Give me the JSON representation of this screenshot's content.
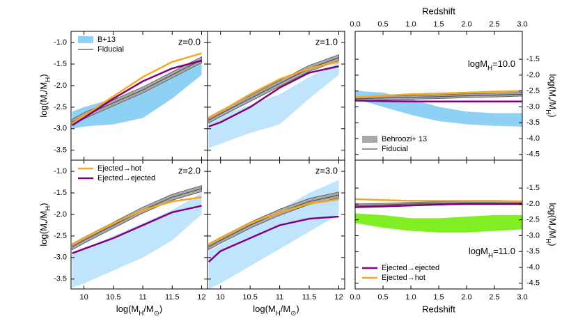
{
  "chart_data": [
    {
      "type": "line",
      "label": "z=0.0",
      "legend": "upper left",
      "xlim": [
        9.78,
        12.1
      ],
      "ylim": [
        -3.73,
        -0.74
      ],
      "xticks": [
        10,
        10.5,
        11,
        11.5,
        12
      ],
      "yticks": [
        {
          "value": -1.0,
          "label": "-1.0"
        },
        -1.5,
        {
          "value": -2.0,
          "label": "-2.0"
        },
        -2.5,
        {
          "value": -3.0,
          "label": "-3.0"
        },
        -3.5
      ],
      "ylabel": [
        "log(M",
        "*",
        "/M",
        "H",
        ")"
      ],
      "x": [
        9.8,
        10,
        10.5,
        11,
        11.5,
        12
      ],
      "series": [
        {
          "name": "B+13",
          "color": "#8fd0f5",
          "lower": [
            -3.0,
            -2.95,
            -2.9,
            -2.75,
            -2.3,
            -1.75
          ],
          "upper": [
            -2.6,
            -2.5,
            -2.3,
            -2.15,
            -1.75,
            -1.35
          ]
        },
        {
          "color": "#a8a8a8",
          "lower": [
            -2.92,
            -2.77,
            -2.47,
            -2.17,
            -1.82,
            -1.47
          ],
          "upper": [
            -2.78,
            -2.63,
            -2.33,
            -2.03,
            -1.68,
            -1.33
          ]
        },
        {
          "name": "Fiducial",
          "color": "#555555",
          "values": [
            -2.85,
            -2.7,
            -2.4,
            -2.1,
            -1.75,
            -1.4
          ]
        },
        {
          "color": "#f5a623",
          "values": [
            -2.88,
            -2.7,
            -2.25,
            -1.8,
            -1.45,
            -1.25
          ]
        },
        {
          "color": "#800080",
          "values": [
            -2.92,
            -2.75,
            -2.3,
            -1.9,
            -1.6,
            -1.42
          ]
        }
      ]
    },
    {
      "type": "line",
      "label": "z=1.0",
      "xlim": [
        9.78,
        12.1
      ],
      "ylim": [
        -3.73,
        -0.74
      ],
      "xticks": [
        10,
        10.5,
        11,
        11.5,
        12
      ],
      "yticks": [
        {
          "value": -1.0,
          "label": "-1.0"
        },
        -1.5,
        {
          "value": -2.0,
          "label": "-2.0"
        },
        -2.5,
        {
          "value": -3.0,
          "label": "-3.0"
        },
        -3.5
      ],
      "x": [
        9.8,
        10,
        10.5,
        11,
        11.5,
        12
      ],
      "series": [
        {
          "color": "#bfe4fb",
          "lower": [
            -3.45,
            -3.35,
            -3.1,
            -2.9,
            -2.3,
            -1.75
          ],
          "upper": [
            -2.8,
            -2.7,
            -2.45,
            -2.2,
            -1.8,
            -1.45
          ]
        },
        {
          "color": "#a8a8a8",
          "lower": [
            -2.87,
            -2.72,
            -2.37,
            -2.02,
            -1.67,
            -1.42
          ],
          "upper": [
            -2.73,
            -2.58,
            -2.23,
            -1.88,
            -1.53,
            -1.28
          ]
        },
        {
          "color": "#555555",
          "values": [
            -2.8,
            -2.65,
            -2.3,
            -1.95,
            -1.6,
            -1.35
          ]
        },
        {
          "color": "#f5a623",
          "values": [
            -2.75,
            -2.6,
            -2.2,
            -1.85,
            -1.6,
            -1.45
          ]
        },
        {
          "color": "#800080",
          "values": [
            -2.95,
            -2.85,
            -2.5,
            -2.05,
            -1.7,
            -1.55
          ]
        }
      ]
    },
    {
      "type": "line",
      "label": "z=2.0",
      "legend": "upper left",
      "xlim": [
        9.78,
        12.1
      ],
      "ylim": [
        -3.73,
        -0.74
      ],
      "xticks": [
        10,
        10.5,
        11,
        11.5,
        12
      ],
      "yticks": [
        {
          "value": -1.0,
          "label": "-1.0"
        },
        -1.5,
        {
          "value": -2.0,
          "label": "-2.0"
        },
        -2.5,
        {
          "value": -3.0,
          "label": "-3.0"
        },
        -3.5
      ],
      "xlabel": [
        "log(M",
        "H",
        "/M",
        "⊙",
        ")"
      ],
      "ylabel": [
        "log(M",
        "*",
        "/M",
        "H",
        ")"
      ],
      "x": [
        9.8,
        10,
        10.5,
        11,
        11.5,
        12
      ],
      "series": [
        {
          "color": "#bfe4fb",
          "lower": [
            -3.7,
            -3.6,
            -3.3,
            -3.0,
            -2.6,
            -2.0
          ],
          "upper": [
            -2.9,
            -2.8,
            -2.5,
            -2.2,
            -1.9,
            -1.5
          ]
        },
        {
          "color": "#a8a8a8",
          "lower": [
            -2.82,
            -2.67,
            -2.32,
            -1.97,
            -1.67,
            -1.47
          ],
          "upper": [
            -2.68,
            -2.53,
            -2.18,
            -1.83,
            -1.53,
            -1.33
          ]
        },
        {
          "color": "#555555",
          "values": [
            -2.75,
            -2.6,
            -2.25,
            -1.9,
            -1.6,
            -1.4
          ]
        },
        {
          "name": "Ejected→hot",
          "color": "#f5a623",
          "values": [
            -2.7,
            -2.55,
            -2.2,
            -1.9,
            -1.7,
            -1.6
          ]
        },
        {
          "name": "Ejected→ejected",
          "color": "#800080",
          "values": [
            -2.9,
            -2.8,
            -2.55,
            -2.25,
            -1.95,
            -1.8
          ]
        }
      ]
    },
    {
      "type": "line",
      "label": "z=3.0",
      "xlim": [
        9.78,
        12.1
      ],
      "ylim": [
        -3.73,
        -0.74
      ],
      "xticks": [
        10,
        10.5,
        11,
        11.5,
        12
      ],
      "yticks": [
        {
          "value": -1.0,
          "label": "-1.0"
        },
        -1.5,
        {
          "value": -2.0,
          "label": "-2.0"
        },
        -2.5,
        {
          "value": -3.0,
          "label": "-3.0"
        },
        -3.5
      ],
      "xlabel": [
        "log(M",
        "H",
        "/M",
        "⊙",
        ")"
      ],
      "x": [
        9.8,
        10,
        10.5,
        11,
        11.5,
        12
      ],
      "series": [
        {
          "color": "#bfe4fb",
          "lower": [
            -3.73,
            -3.6,
            -3.2,
            -2.8,
            -2.4,
            -2.0
          ],
          "upper": [
            -2.85,
            -2.7,
            -2.3,
            -1.9,
            -1.5,
            -1.2
          ]
        },
        {
          "color": "#a8a8a8",
          "lower": [
            -2.82,
            -2.67,
            -2.32,
            -2.02,
            -1.77,
            -1.62
          ],
          "upper": [
            -2.68,
            -2.53,
            -2.18,
            -1.88,
            -1.63,
            -1.48
          ]
        },
        {
          "color": "#555555",
          "values": [
            -2.75,
            -2.6,
            -2.25,
            -1.95,
            -1.7,
            -1.55
          ]
        },
        {
          "color": "#f5a623",
          "values": [
            -2.7,
            -2.55,
            -2.2,
            -1.95,
            -1.75,
            -1.65
          ]
        },
        {
          "color": "#800080",
          "values": [
            -3.1,
            -2.85,
            -2.55,
            -2.25,
            -2.1,
            -2.05
          ]
        }
      ]
    },
    {
      "type": "line",
      "label": [
        "logM",
        "H",
        "=10.0"
      ],
      "legend": "lower left",
      "xlim": [
        0,
        3
      ],
      "ylim": [
        -4.68,
        -0.62
      ],
      "xticks": [
        {
          "value": 0,
          "label": "0.0"
        },
        0.5,
        {
          "value": 1,
          "label": "1.0"
        },
        1.5,
        {
          "value": 2,
          "label": "2.0"
        },
        2.5,
        {
          "value": 3,
          "label": "3.0"
        }
      ],
      "yticks": [
        -1.5,
        {
          "value": -2,
          "label": "-2.0"
        },
        -2.5,
        {
          "value": -3,
          "label": "-3.0"
        },
        -3.5,
        {
          "value": -4,
          "label": "-4.0"
        },
        -4.5
      ],
      "xlabel": "Redshift",
      "ylabel": [
        "log(M",
        "*",
        "/M",
        "H",
        ")"
      ],
      "x": [
        0,
        0.5,
        1,
        1.5,
        2,
        2.5,
        3
      ],
      "series": [
        {
          "color": "#8fd0f5",
          "lower": [
            -2.75,
            -3.0,
            -3.25,
            -3.45,
            -3.55,
            -3.6,
            -3.62
          ],
          "upper": [
            -2.5,
            -2.55,
            -2.75,
            -3.0,
            -3.15,
            -3.2,
            -3.2
          ]
        },
        {
          "name": "Behroozi+ 13",
          "color": "#a8a8a8",
          "lower": [
            -2.81,
            -2.78,
            -2.76,
            -2.74,
            -2.71,
            -2.69,
            -2.66
          ],
          "upper": [
            -2.69,
            -2.66,
            -2.64,
            -2.62,
            -2.59,
            -2.57,
            -2.54
          ]
        },
        {
          "name": "Fiducial",
          "color": "#555555",
          "values": [
            -2.75,
            -2.72,
            -2.7,
            -2.68,
            -2.65,
            -2.63,
            -2.6
          ]
        },
        {
          "color": "#f5a623",
          "values": [
            -2.7,
            -2.65,
            -2.6,
            -2.58,
            -2.55,
            -2.52,
            -2.5
          ]
        },
        {
          "color": "#800080",
          "values": [
            -2.8,
            -2.82,
            -2.83,
            -2.83,
            -2.83,
            -2.83,
            -2.83
          ]
        }
      ]
    },
    {
      "type": "line",
      "label": [
        "logM",
        "H",
        "=11.0"
      ],
      "legend": "lower left",
      "xlim": [
        0,
        3
      ],
      "ylim": [
        -4.68,
        -0.62
      ],
      "xticks": [
        {
          "value": 0,
          "label": "0.0"
        },
        0.5,
        {
          "value": 1,
          "label": "1.0"
        },
        1.5,
        {
          "value": 2,
          "label": "2.0"
        },
        2.5,
        {
          "value": 3,
          "label": "3.0"
        }
      ],
      "yticks": [
        -1.5,
        {
          "value": -2,
          "label": "-2.0"
        },
        -2.5,
        {
          "value": -3,
          "label": "-3.0"
        },
        -3.5,
        {
          "value": -4,
          "label": "-4.0"
        },
        -4.5
      ],
      "xlabel": "Redshift",
      "ylabel": [
        "log(M",
        "*",
        "/M",
        "H",
        ")"
      ],
      "x": [
        0,
        0.5,
        1,
        1.5,
        2,
        2.5,
        3
      ],
      "series": [
        {
          "color": "#80ee22",
          "lower": [
            -2.6,
            -2.75,
            -2.85,
            -2.9,
            -2.9,
            -2.85,
            -2.8
          ],
          "upper": [
            -2.3,
            -2.35,
            -2.45,
            -2.45,
            -2.4,
            -2.35,
            -2.35
          ]
        },
        {
          "color": "#a8a8a8",
          "lower": [
            -2.1,
            -2.08,
            -2.05,
            -2.03,
            -2.02,
            -2.02,
            -2.02
          ],
          "upper": [
            -2.0,
            -1.98,
            -1.95,
            -1.93,
            -1.92,
            -1.92,
            -1.92
          ]
        },
        {
          "color": "#555555",
          "values": [
            -2.05,
            -2.03,
            -2.0,
            -1.98,
            -1.97,
            -1.97,
            -1.97
          ]
        },
        {
          "name": "Ejected→ejected",
          "color": "#800080",
          "values": [
            -2.1,
            -2.08,
            -2.05,
            -2.02,
            -2.0,
            -2.0,
            -2.0
          ]
        },
        {
          "name": "Ejected→hot",
          "color": "#f5a623",
          "values": [
            -1.85,
            -1.88,
            -1.9,
            -1.9,
            -1.9,
            -1.9,
            -1.92
          ]
        }
      ]
    }
  ]
}
